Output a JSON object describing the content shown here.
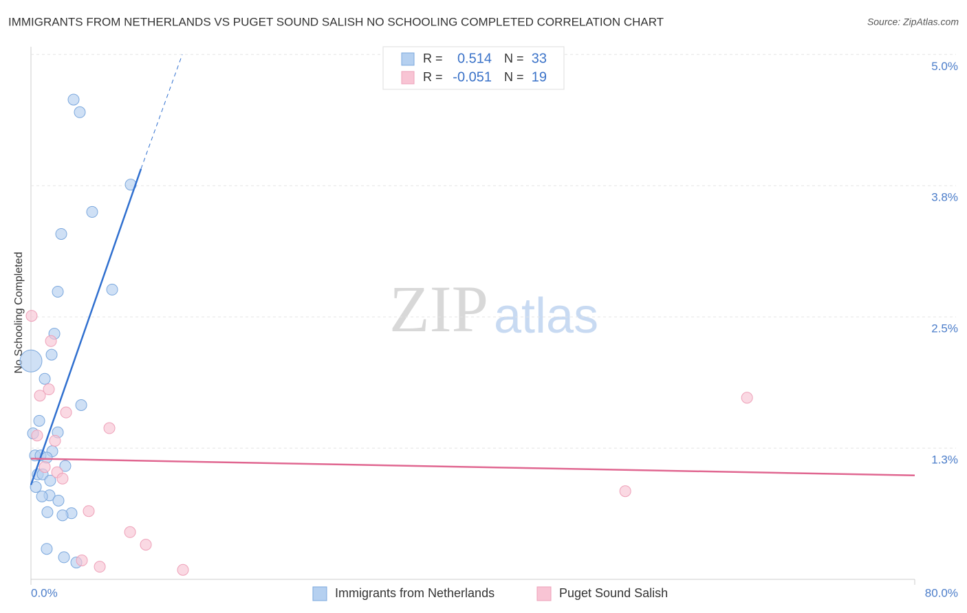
{
  "chart_data": {
    "type": "scatter",
    "title": "IMMIGRANTS FROM NETHERLANDS VS PUGET SOUND SALISH NO SCHOOLING COMPLETED CORRELATION CHART",
    "source": "Source: ZipAtlas.com",
    "watermark": [
      "ZIP",
      "atlas"
    ],
    "y_label": "No Schooling Completed",
    "xlim": [
      0,
      80
    ],
    "ylim": [
      0,
      5.1
    ],
    "xticks": [
      {
        "value": 0,
        "label": "0.0%"
      },
      {
        "value": 80,
        "label": "80.0%"
      }
    ],
    "yticks": [
      {
        "value": 1.25,
        "label": "1.3%"
      },
      {
        "value": 2.5,
        "label": "2.5%"
      },
      {
        "value": 3.75,
        "label": "3.8%"
      },
      {
        "value": 5,
        "label": "5.0%"
      }
    ],
    "grid": true,
    "stat_labels": [
      "R =",
      "N ="
    ],
    "series": [
      {
        "name": "Immigrants from Netherlands",
        "color": "#b5d0f0",
        "edge": "#7aa7dd",
        "line_color": "#2f6fcf",
        "r": 0.514,
        "n": 33,
        "x": [
          3.86,
          4.42,
          9.03,
          5.54,
          2.74,
          7.35,
          2.43,
          2.12,
          1.87,
          0,
          1.25,
          4.55,
          0.75,
          2.43,
          0.19,
          1.93,
          0.37,
          0.87,
          1.43,
          3.11,
          0.62,
          1.06,
          1.74,
          0.44,
          1.68,
          1.0,
          2.49,
          1.49,
          3.67,
          2.86,
          1.43,
          2.99,
          4.11
        ],
        "values": [
          4.57,
          4.45,
          3.76,
          3.5,
          3.29,
          2.76,
          2.74,
          2.34,
          2.14,
          2.08,
          1.91,
          1.66,
          1.51,
          1.4,
          1.39,
          1.22,
          1.18,
          1.18,
          1.16,
          1.08,
          1.0,
          1.0,
          0.94,
          0.88,
          0.8,
          0.79,
          0.75,
          0.64,
          0.63,
          0.61,
          0.29,
          0.21,
          0.16
        ],
        "sizes": [
          1,
          1,
          1,
          1,
          1,
          1,
          1,
          1,
          1,
          4,
          1,
          1,
          1,
          1,
          1,
          1,
          1,
          1,
          1,
          1,
          1,
          1,
          1,
          1,
          1,
          1,
          1,
          1,
          1,
          1,
          1,
          1,
          1
        ],
        "trend": {
          "x": [
            0,
            9.96,
            13.7
          ],
          "y": [
            0.9,
            3.91,
            5.0
          ]
        }
      },
      {
        "name": "Puget Sound Salish",
        "color": "#f8c4d4",
        "edge": "#eea0b8",
        "line_color": "#e06690",
        "r": -0.051,
        "n": 19,
        "x": [
          0.06,
          1.81,
          1.62,
          0.81,
          3.18,
          7.1,
          0.56,
          2.18,
          1.25,
          2.37,
          2.86,
          5.23,
          8.97,
          10.4,
          4.61,
          6.23,
          13.76,
          53.8,
          64.82
        ],
        "values": [
          2.51,
          2.27,
          1.81,
          1.75,
          1.59,
          1.44,
          1.37,
          1.32,
          1.07,
          1.02,
          0.96,
          0.65,
          0.45,
          0.33,
          0.18,
          0.12,
          0.09,
          0.84,
          1.73
        ],
        "sizes": [
          1,
          1,
          1,
          1,
          1,
          1,
          1,
          1,
          1,
          1,
          1,
          1,
          1,
          1,
          1,
          1,
          1,
          1,
          1
        ],
        "trend": {
          "x": [
            0,
            80
          ],
          "y": [
            1.15,
            0.99
          ]
        }
      }
    ]
  }
}
